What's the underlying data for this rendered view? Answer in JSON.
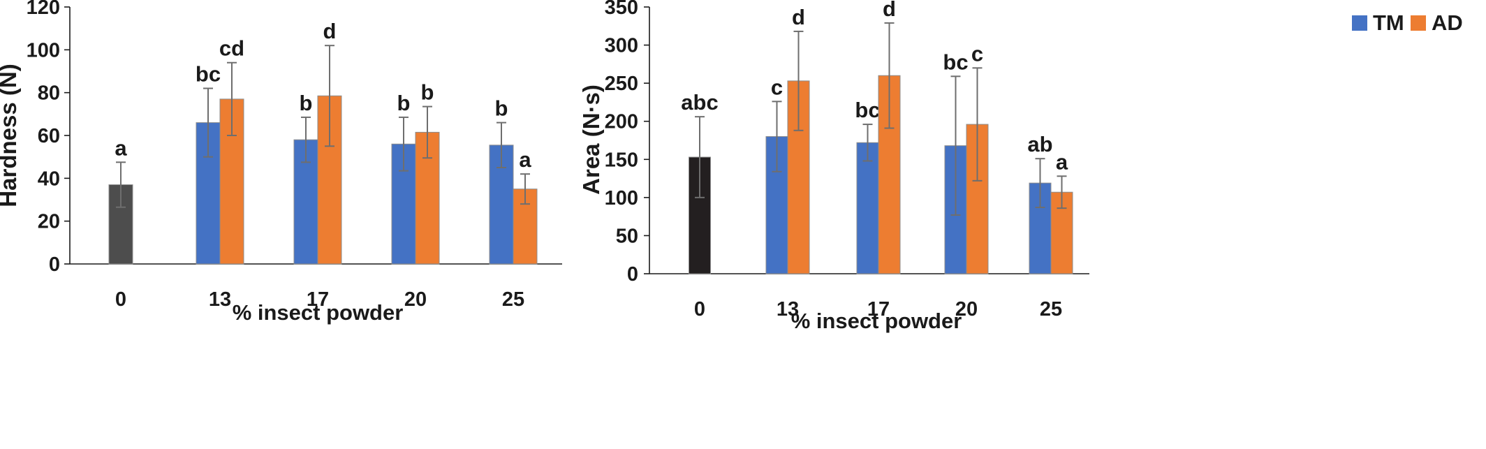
{
  "chart_data": [
    {
      "type": "bar",
      "xlabel": "% insect powder",
      "ylabel": "Hardness (N)",
      "ylim": [
        0,
        120
      ],
      "yticks": [
        0,
        20,
        40,
        60,
        80,
        100,
        120
      ],
      "categories": [
        "0",
        "13",
        "17",
        "20",
        "25"
      ],
      "control": {
        "value": 37,
        "err": 10.5,
        "label": "a",
        "color": "#4d4d4d"
      },
      "series": [
        {
          "values": [
            null,
            66,
            58,
            56,
            55.5
          ],
          "err": [
            null,
            16,
            10.5,
            12.5,
            10.5
          ],
          "labels": [
            null,
            "bc",
            "b",
            "b",
            "b"
          ],
          "color": "#4472c4"
        },
        {
          "values": [
            null,
            77,
            78.5,
            61.5,
            35
          ],
          "err": [
            null,
            17,
            23.5,
            12,
            7
          ],
          "labels": [
            null,
            "cd",
            "d",
            "b",
            "a"
          ],
          "color": "#ed7d31"
        }
      ],
      "grid": false
    },
    {
      "type": "bar",
      "xlabel": "% insect powder",
      "ylabel": "Area (N·s)",
      "ylim": [
        0,
        350
      ],
      "yticks": [
        0,
        50,
        100,
        150,
        200,
        250,
        300,
        350
      ],
      "categories": [
        "0",
        "13",
        "17",
        "20",
        "25"
      ],
      "control": {
        "value": 153,
        "err": 53,
        "label": "abc",
        "color": "#231f20"
      },
      "series": [
        {
          "name": "TM",
          "values": [
            null,
            180,
            172,
            168,
            119
          ],
          "err": [
            null,
            46,
            24,
            91,
            32
          ],
          "labels": [
            null,
            "c",
            "bc",
            "bc",
            "ab"
          ],
          "color": "#4472c4"
        },
        {
          "name": "AD",
          "values": [
            null,
            253,
            260,
            196,
            107
          ],
          "err": [
            null,
            65,
            69,
            74,
            21
          ],
          "labels": [
            null,
            "d",
            "d",
            "c",
            "a"
          ],
          "color": "#ed7d31"
        }
      ],
      "legend": "top-right",
      "grid": false
    }
  ]
}
